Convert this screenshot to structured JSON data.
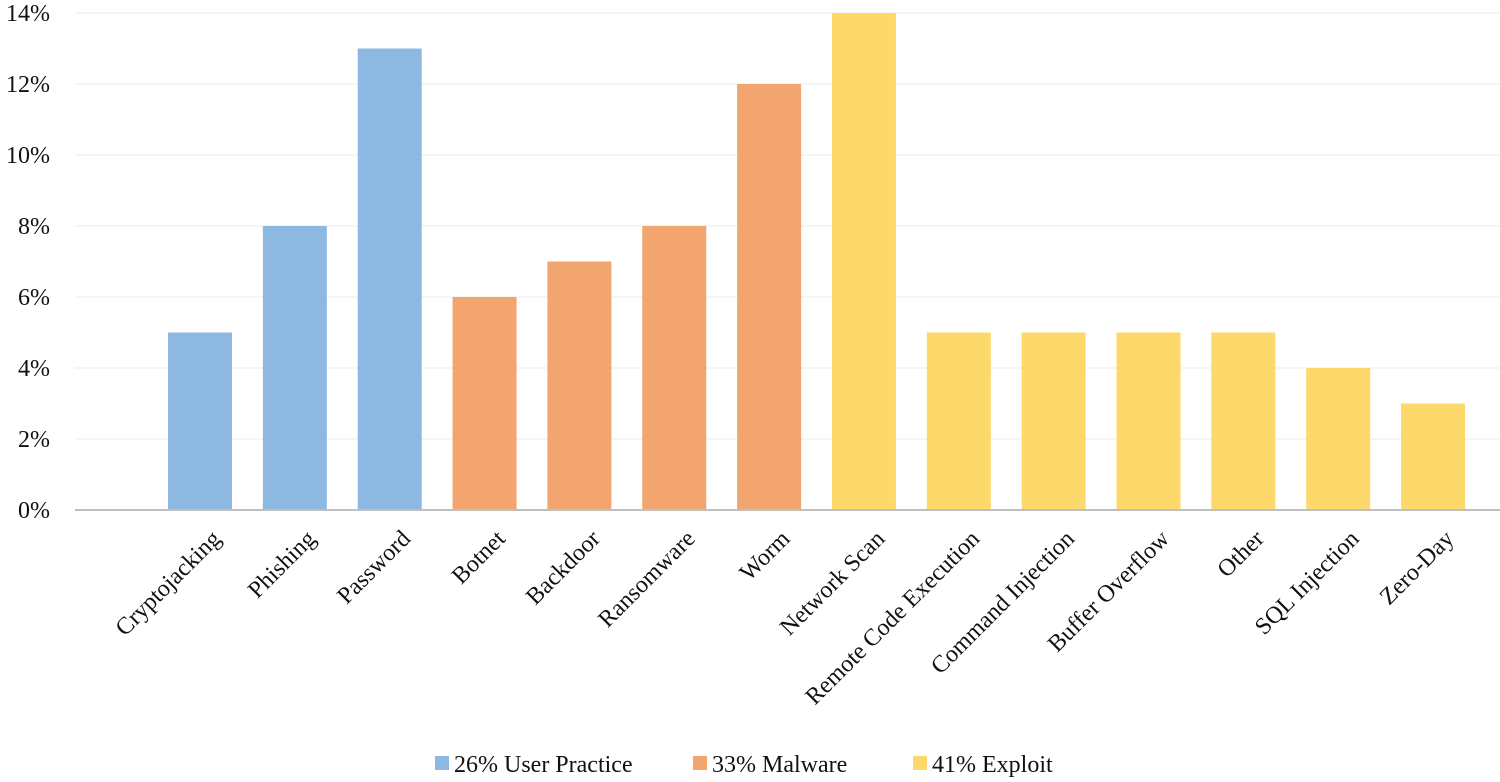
{
  "chart_data": {
    "type": "bar",
    "title": "",
    "xlabel": "",
    "ylabel": "",
    "ylim": [
      0,
      14
    ],
    "y_ticks": [
      0,
      2,
      4,
      6,
      8,
      10,
      12,
      14
    ],
    "y_tick_labels": [
      "0%",
      "2%",
      "4%",
      "6%",
      "8%",
      "10%",
      "12%",
      "14%"
    ],
    "grid": true,
    "legend_position": "bottom",
    "categories": [
      "Cryptojacking",
      "Phishing",
      "Password",
      "Botnet",
      "Backdoor",
      "Ransomware",
      "Worm",
      "Network  Scan",
      "Remote Code Execution",
      "Command Injection",
      "Buffer Overflow",
      "Other",
      "SQL Injection",
      "Zero-Day"
    ],
    "values": [
      5,
      8,
      13,
      6,
      7,
      8,
      12,
      14,
      5,
      5,
      5,
      5,
      4,
      3
    ],
    "bar_groups": [
      0,
      0,
      0,
      1,
      1,
      1,
      1,
      2,
      2,
      2,
      2,
      2,
      2,
      2
    ],
    "groups": [
      {
        "name": "26% User Practice",
        "color": "#8DB8E2"
      },
      {
        "name": "33% Malware",
        "color": "#F2A56E"
      },
      {
        "name": "41% Exploit",
        "color": "#FDD96B"
      }
    ]
  }
}
